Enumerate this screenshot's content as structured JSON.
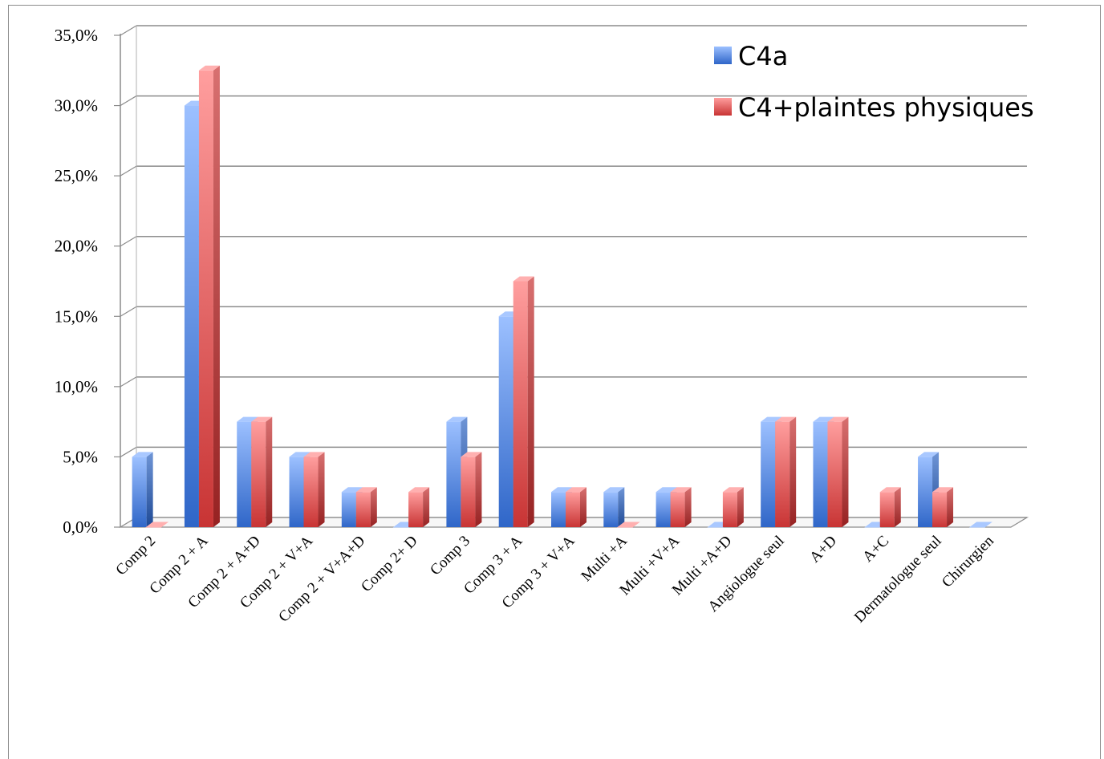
{
  "chart_data": {
    "type": "bar",
    "style": "3d-clustered-column",
    "categories": [
      "Comp 2",
      "Comp 2 + A",
      "Comp 2 + A+D",
      "Comp  2 + V+A",
      "Comp  2 + V+A+D",
      "Comp 2+ D",
      "Comp 3",
      "Comp 3 + A",
      "Comp 3 + V+A",
      "Multi +A",
      "Multi +V+A",
      "Multi +A+D",
      "Angiologue seul",
      "A+D",
      "A+C",
      "Dermatologue seul",
      "Chirurgien"
    ],
    "series": [
      {
        "name": "C4a",
        "color": "#4a7fd8",
        "values": [
          5.0,
          30.0,
          7.5,
          5.0,
          2.5,
          0.0,
          7.5,
          15.0,
          2.5,
          2.5,
          2.5,
          0.0,
          7.5,
          7.5,
          0.0,
          5.0,
          0.0
        ]
      },
      {
        "name": "C4+plaintes physiques",
        "color": "#e06060",
        "values": [
          0.0,
          32.5,
          7.5,
          5.0,
          2.5,
          2.5,
          5.0,
          17.5,
          2.5,
          0.0,
          2.5,
          2.5,
          7.5,
          7.5,
          2.5,
          2.5,
          null
        ]
      }
    ],
    "y_ticks": [
      "0,0%",
      "5,0%",
      "10,0%",
      "15,0%",
      "20,0%",
      "25,0%",
      "30,0%",
      "35,0%"
    ],
    "ylim": [
      0,
      35
    ],
    "grid": true,
    "legend_position": "top-right",
    "title": "",
    "xlabel": "",
    "ylabel": ""
  }
}
